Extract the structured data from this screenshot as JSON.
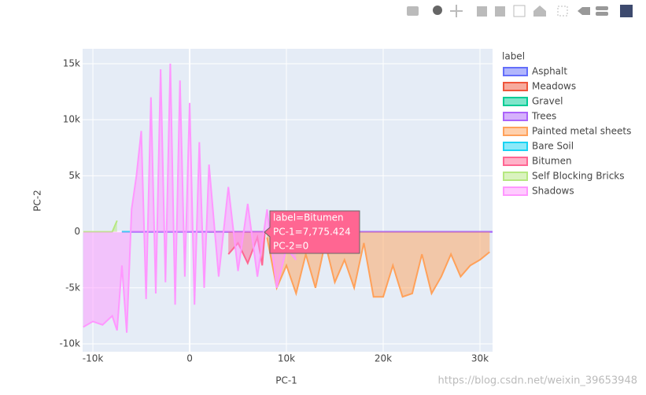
{
  "chart_data": {
    "type": "area",
    "x_label": "PC-1",
    "y_label": "PC-2",
    "legend_title": "label",
    "xlim": [
      -11060,
      31300
    ],
    "ylim": [
      -10700,
      16330
    ],
    "xticks": [
      {
        "value": -10000,
        "label": "-10k"
      },
      0,
      {
        "value": 10000,
        "label": "10k"
      },
      {
        "value": 20000,
        "label": "20k"
      },
      {
        "value": 30000,
        "label": "30k"
      }
    ],
    "yticks": [
      {
        "value": -10000,
        "label": "-10k"
      },
      {
        "value": -5000,
        "label": "-5k"
      },
      0,
      {
        "value": 5000,
        "label": "5k"
      },
      {
        "value": 10000,
        "label": "10k"
      },
      {
        "value": 15000,
        "label": "15k"
      }
    ],
    "grid": true,
    "series": [
      {
        "name": "Asphalt",
        "color": "#636efa",
        "x": [
          -7000,
          31300
        ],
        "values": [
          0,
          0
        ]
      },
      {
        "name": "Meadows",
        "color": "#EF553B",
        "x": [
          2000,
          8000
        ],
        "values": [
          0,
          0
        ]
      },
      {
        "name": "Gravel",
        "color": "#00cc96",
        "x": [
          -7000,
          -6000
        ],
        "values": [
          0,
          0
        ]
      },
      {
        "name": "Trees",
        "color": "#ab63fa",
        "x": [
          -7000,
          31300
        ],
        "values": [
          0,
          0
        ]
      },
      {
        "name": "Painted metal sheets",
        "color": "#FFA15A",
        "x": [
          8000,
          9000,
          10000,
          11000,
          12000,
          13000,
          14000,
          15000,
          16000,
          17000,
          18000,
          19000,
          20000,
          21000,
          22000,
          23000,
          24000,
          25000,
          26000,
          27000,
          28000,
          29000,
          30000,
          31000
        ],
        "values": [
          -500,
          -5000,
          -3000,
          -5500,
          -2000,
          -5000,
          -1000,
          -4500,
          -2500,
          -5000,
          -1000,
          -5800,
          -5800,
          -3000,
          -5800,
          -5500,
          -2000,
          -5500,
          -4000,
          -2000,
          -4000,
          -3000,
          -2500,
          -1800
        ]
      },
      {
        "name": "Bare Soil",
        "color": "#19d3f3",
        "x": [
          -7000,
          -6000
        ],
        "values": [
          0,
          0
        ]
      },
      {
        "name": "Bitumen",
        "color": "#FF6692",
        "x": [
          4000,
          5000,
          6000,
          7000,
          7500,
          7775.424
        ],
        "values": [
          -2000,
          -1000,
          -2800,
          -500,
          -3000,
          0
        ]
      },
      {
        "name": "Self Blocking Bricks",
        "color": "#B6E880",
        "x": [
          -11000,
          -10000,
          -9000,
          -8000,
          -7500
        ],
        "values": [
          0,
          0,
          0,
          0,
          1000
        ]
      },
      {
        "name": "Shadows",
        "color": "#FF97FF",
        "x": [
          -11000,
          -10000,
          -9000,
          -8000,
          -7500,
          -7000,
          -6500,
          -6000,
          -5500,
          -5000,
          -4500,
          -4000,
          -3500,
          -3000,
          -2500,
          -2000,
          -1500,
          -1000,
          -500,
          0,
          500,
          1000,
          1500,
          2000,
          3000,
          4000,
          5000,
          6000,
          7000,
          8000,
          9000,
          10000,
          11000
        ],
        "values": [
          -8500,
          -8000,
          -8300,
          -7500,
          -8800,
          -3000,
          -9000,
          2000,
          5000,
          9000,
          -6000,
          12000,
          -5500,
          14500,
          -4500,
          15000,
          -6500,
          13500,
          -4000,
          11500,
          -6500,
          8000,
          -5000,
          6000,
          -4000,
          4000,
          -3500,
          2500,
          -4000,
          2000,
          -5000,
          -1500,
          -2500
        ]
      }
    ],
    "hover": {
      "lines": [
        "label=Bitumen",
        "PC-1=7,775.424",
        "PC-2=0"
      ]
    },
    "watermark": "https://blog.csdn.net/weixin_39653948"
  }
}
